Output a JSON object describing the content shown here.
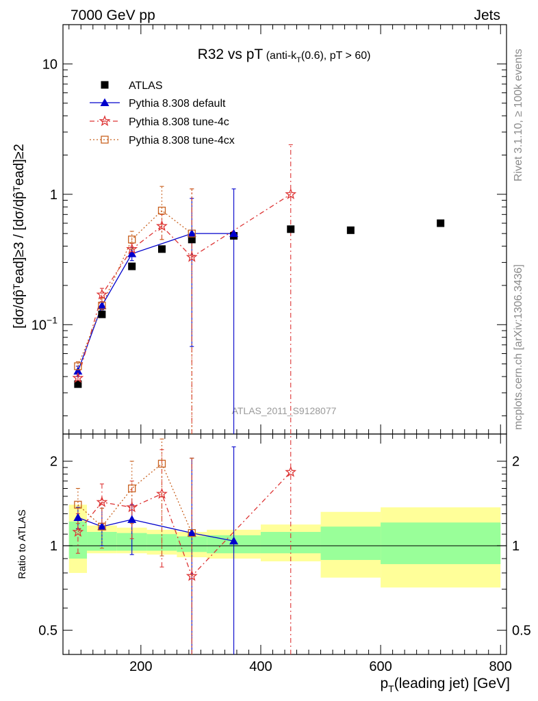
{
  "header": {
    "left": "7000 GeV pp",
    "right": "Jets"
  },
  "side_text": {
    "rivet": "Rivet 3.1.10, ≥ 100k events",
    "mcplots": "mcplots.cern.ch [arXiv:1306.3436]"
  },
  "watermark": "ATLAS_2011_S9128077",
  "title": {
    "main": "R32 vs pT",
    "sub_prefix": "(anti-k",
    "sub_sub": "T",
    "sub_suffix": "(0.6), pT > 60)"
  },
  "ylabel_main": "[dσ/dp̂ᵀead]≥3 / [dσ/dp̂ᵀead]≥2",
  "ylabel_ratio": "Ratio to ATLAS",
  "xlabel": {
    "p": "p",
    "sub": "T",
    "rest": "(leading jet) [GeV]"
  },
  "colors": {
    "atlas": "#000000",
    "default": "#0000cc",
    "tune4c": "#dd3333",
    "tune4cx": "#c8601e",
    "band_inner": "#99ff99",
    "band_outer": "#ffff99"
  },
  "chart_data": {
    "type": "scatter",
    "x_axis": {
      "min": 70,
      "max": 810,
      "ticks": [
        200,
        400,
        600,
        800
      ],
      "label": "pT(leading jet) [GeV]"
    },
    "y_axis_main": {
      "scale": "log",
      "min": 0.0145,
      "max": 20,
      "tick_labels": [
        "10^-1",
        "1",
        "10"
      ]
    },
    "y_axis_ratio": {
      "scale": "log",
      "min": 0.41,
      "max": 2.5,
      "tick_labels": [
        "0.5",
        "1",
        "2"
      ]
    },
    "legend": [
      {
        "key": "atlas",
        "label": "ATLAS"
      },
      {
        "key": "default",
        "label": "Pythia 8.308 default"
      },
      {
        "key": "tune4c",
        "label": "Pythia 8.308 tune-4c"
      },
      {
        "key": "tune4cx",
        "label": "Pythia 8.308 tune-4cx"
      }
    ],
    "bins": [
      {
        "lo": 80,
        "hi": 110,
        "inner_lo": 0.9,
        "inner_hi": 1.22,
        "outer_lo": 0.8,
        "outer_hi": 1.4
      },
      {
        "lo": 110,
        "hi": 160,
        "inner_lo": 0.96,
        "inner_hi": 1.12,
        "outer_lo": 0.94,
        "outer_hi": 1.18
      },
      {
        "lo": 160,
        "hi": 210,
        "inner_lo": 0.96,
        "inner_hi": 1.11,
        "outer_lo": 0.94,
        "outer_hi": 1.16
      },
      {
        "lo": 210,
        "hi": 260,
        "inner_lo": 0.96,
        "inner_hi": 1.1,
        "outer_lo": 0.93,
        "outer_hi": 1.14
      },
      {
        "lo": 260,
        "hi": 310,
        "inner_lo": 0.95,
        "inner_hi": 1.08,
        "outer_lo": 0.91,
        "outer_hi": 1.12
      },
      {
        "lo": 310,
        "hi": 400,
        "inner_lo": 0.94,
        "inner_hi": 1.09,
        "outer_lo": 0.9,
        "outer_hi": 1.14
      },
      {
        "lo": 400,
        "hi": 500,
        "inner_lo": 0.94,
        "inner_hi": 1.12,
        "outer_lo": 0.88,
        "outer_hi": 1.19
      },
      {
        "lo": 500,
        "hi": 600,
        "inner_lo": 0.89,
        "inner_hi": 1.17,
        "outer_lo": 0.77,
        "outer_hi": 1.32
      },
      {
        "lo": 600,
        "hi": 800,
        "inner_lo": 0.86,
        "inner_hi": 1.21,
        "outer_lo": 0.71,
        "outer_hi": 1.37
      }
    ],
    "series": [
      {
        "key": "atlas",
        "name": "ATLAS",
        "x": [
          95,
          135,
          185,
          235,
          285,
          355,
          450,
          550,
          700
        ],
        "y": [
          0.035,
          0.12,
          0.28,
          0.38,
          0.45,
          0.48,
          0.54,
          0.53,
          0.6
        ]
      },
      {
        "key": "default",
        "name": "Pythia 8.308 default",
        "x": [
          95,
          135,
          185,
          285,
          355
        ],
        "y": [
          0.044,
          0.14,
          0.35,
          0.5,
          0.5
        ],
        "err_lo": [
          0.04,
          0.13,
          0.31,
          0.068,
          0.0
        ],
        "err_hi": [
          0.048,
          0.15,
          0.39,
          0.93,
          1.1
        ],
        "ratio": [
          1.26,
          1.17,
          1.24,
          1.11,
          1.04
        ],
        "ratio_lo": [
          1.15,
          1.0,
          0.93,
          0.0,
          0.0
        ],
        "ratio_hi": [
          1.37,
          1.36,
          1.4,
          2.05,
          2.25
        ]
      },
      {
        "key": "tune4c",
        "name": "Pythia 8.308 tune-4c",
        "x": [
          95,
          135,
          185,
          235,
          285,
          450
        ],
        "y": [
          0.039,
          0.17,
          0.38,
          0.57,
          0.33,
          1.0
        ],
        "err_lo": [
          0.036,
          0.15,
          0.34,
          0.45,
          0.0,
          0.0
        ],
        "err_hi": [
          0.042,
          0.19,
          0.42,
          0.7,
          1.1,
          2.4
        ],
        "ratio": [
          1.12,
          1.43,
          1.37,
          1.53,
          0.78,
          1.83
        ],
        "ratio_lo": [
          0.94,
          1.2,
          1.06,
          0.84,
          0.0,
          0.0
        ],
        "ratio_hi": [
          1.3,
          1.66,
          1.7,
          2.2,
          2.05,
          2.6
        ]
      },
      {
        "key": "tune4cx",
        "name": "Pythia 8.308 tune-4cx",
        "x": [
          95,
          135,
          185,
          235,
          285
        ],
        "y": [
          0.048,
          0.14,
          0.45,
          0.75,
          0.5
        ],
        "err_lo": [
          0.044,
          0.12,
          0.38,
          0.45,
          0.0
        ],
        "err_hi": [
          0.052,
          0.16,
          0.52,
          1.15,
          1.1
        ],
        "ratio": [
          1.4,
          1.17,
          1.6,
          1.96,
          1.11
        ],
        "ratio_lo": [
          1.2,
          0.98,
          1.2,
          0.92,
          0.0
        ],
        "ratio_hi": [
          1.6,
          1.36,
          2.0,
          2.4,
          2.05
        ]
      }
    ]
  }
}
